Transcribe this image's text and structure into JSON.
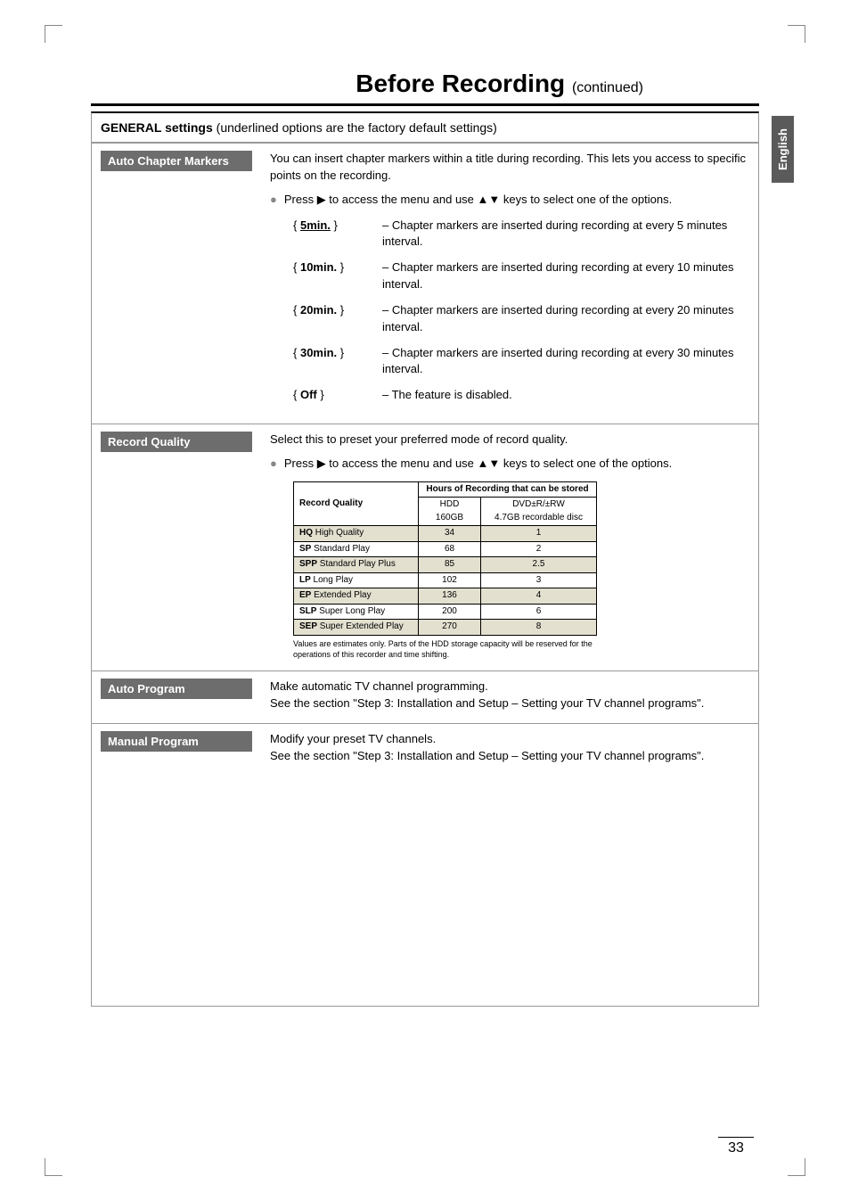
{
  "page_title": "Before Recording",
  "page_title_cont": "(continued)",
  "side_tab": "English",
  "page_number": "33",
  "general_header_bold": "GENERAL settings",
  "general_header_rest": " (underlined options are the factory default settings)",
  "sections": {
    "auto_chapter": {
      "label": "Auto Chapter Markers",
      "intro": "You can insert chapter markers within a title during recording. This lets you access to specific points on the recording.",
      "bullet": "Press ▶ to access the menu and use ▲▼ keys to select one of the options.",
      "options": [
        {
          "key": "{ 5min. }",
          "underline": true,
          "desc": "– Chapter markers are inserted during recording at every 5 minutes interval."
        },
        {
          "key": "{ 10min. }",
          "underline": false,
          "desc": "– Chapter markers are inserted during recording at every 10 minutes interval."
        },
        {
          "key": "{ 20min. }",
          "underline": false,
          "desc": "– Chapter markers are inserted during recording at every 20 minutes interval."
        },
        {
          "key": "{ 30min. }",
          "underline": false,
          "desc": "– Chapter markers are inserted during recording at every 30 minutes interval."
        },
        {
          "key": "{ Off }",
          "underline": false,
          "desc": "– The feature is disabled."
        }
      ]
    },
    "record_quality": {
      "label": "Record Quality",
      "intro": "Select this to preset your preferred mode of record quality.",
      "bullet": "Press ▶ to access the menu and use ▲▼ keys to select one of the options.",
      "table": {
        "header_main": "Record Quality",
        "header_span": "Hours of Recording that can be stored",
        "header_col1": "HDD\n160GB",
        "header_col2": "DVD±R/±RW\n4.7GB recordable disc",
        "rows": [
          {
            "mode_b": "HQ",
            "mode_r": " High Quality",
            "hdd": "34",
            "dvd": "1",
            "shade": true
          },
          {
            "mode_b": "SP",
            "mode_r": " Standard Play",
            "hdd": "68",
            "dvd": "2",
            "shade": false
          },
          {
            "mode_b": "SPP",
            "mode_r": " Standard Play Plus",
            "hdd": "85",
            "dvd": "2.5",
            "shade": true
          },
          {
            "mode_b": "LP",
            "mode_r": " Long Play",
            "hdd": "102",
            "dvd": "3",
            "shade": false
          },
          {
            "mode_b": "EP",
            "mode_r": " Extended Play",
            "hdd": "136",
            "dvd": "4",
            "shade": true
          },
          {
            "mode_b": "SLP",
            "mode_r": " Super Long Play",
            "hdd": "200",
            "dvd": "6",
            "shade": false
          },
          {
            "mode_b": "SEP",
            "mode_r": " Super Extended Play",
            "hdd": "270",
            "dvd": "8",
            "shade": true
          }
        ]
      },
      "note": "Values are estimates only. Parts of the HDD storage capacity will be reserved for the operations of this recorder and time shifting."
    },
    "auto_program": {
      "label": "Auto Program",
      "text": "Make automatic TV channel programming.\nSee the section \"Step 3: Installation and Setup – Setting your TV channel programs\"."
    },
    "manual_program": {
      "label": "Manual Program",
      "text": "Modify your preset TV channels.\nSee the section \"Step 3: Installation and Setup – Setting your TV channel programs\"."
    }
  }
}
